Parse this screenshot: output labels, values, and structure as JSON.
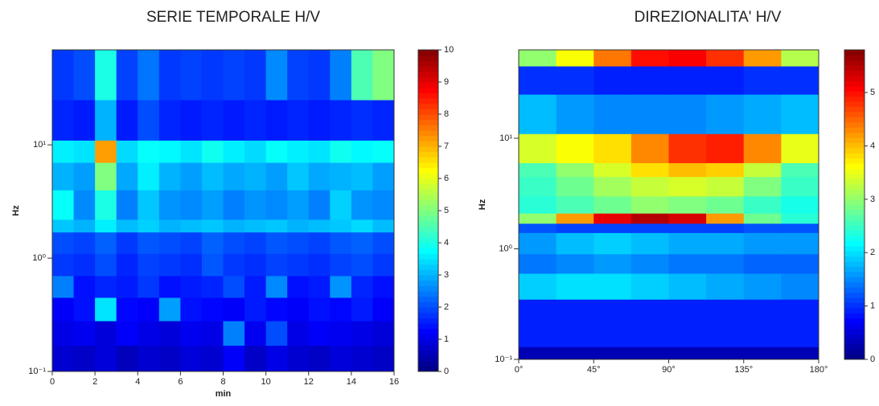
{
  "chart_data": [
    {
      "type": "heatmap",
      "title": "SERIE TEMPORALE H/V",
      "xlabel": "min",
      "ylabel": "Hz",
      "xbins": [
        0,
        1,
        2,
        3,
        4,
        5,
        6,
        7,
        8,
        9,
        10,
        11,
        12,
        13,
        14,
        15,
        16
      ],
      "ybins": [
        0.1,
        0.17,
        0.28,
        0.45,
        0.7,
        1.1,
        1.7,
        2.2,
        4,
        7,
        11,
        25,
        69
      ],
      "values": [
        [
          0.8,
          0.7,
          0.9,
          0.6,
          0.8,
          0.7,
          0.9,
          0.8,
          1.2,
          0.7,
          1.0,
          0.8,
          0.7,
          0.9,
          0.8,
          0.7
        ],
        [
          1.0,
          1.1,
          0.9,
          1.2,
          1.0,
          0.9,
          1.1,
          1.0,
          2.5,
          1.1,
          2.0,
          1.0,
          1.2,
          1.1,
          1.0,
          0.9
        ],
        [
          1.2,
          1.4,
          3.5,
          1.3,
          1.2,
          2.8,
          1.4,
          1.3,
          1.2,
          1.5,
          1.3,
          1.2,
          1.4,
          1.3,
          1.5,
          1.2
        ],
        [
          2.5,
          1.4,
          1.6,
          1.5,
          1.8,
          1.4,
          1.5,
          1.6,
          2.0,
          1.5,
          2.6,
          1.4,
          1.5,
          2.7,
          1.6,
          1.4
        ],
        [
          1.8,
          1.7,
          2.0,
          1.6,
          1.9,
          1.8,
          1.7,
          2.1,
          1.8,
          1.7,
          1.9,
          1.8,
          1.7,
          1.9,
          2.0,
          1.8
        ],
        [
          2.0,
          1.9,
          2.2,
          1.8,
          2.1,
          2.0,
          1.9,
          2.2,
          2.0,
          1.9,
          2.1,
          2.0,
          1.9,
          2.1,
          2.2,
          2.0
        ],
        [
          3.2,
          3.0,
          3.6,
          3.1,
          3.3,
          3.0,
          3.1,
          3.2,
          3.0,
          3.1,
          3.2,
          3.0,
          3.1,
          3.2,
          3.4,
          3.1
        ],
        [
          3.8,
          2.6,
          4.0,
          2.5,
          3.2,
          2.7,
          2.6,
          2.8,
          2.5,
          2.7,
          2.6,
          2.8,
          2.5,
          3.3,
          2.7,
          2.6
        ],
        [
          3.0,
          2.8,
          5.0,
          2.9,
          3.6,
          3.0,
          2.8,
          3.1,
          2.9,
          3.0,
          2.8,
          3.2,
          2.9,
          3.0,
          3.1,
          2.8
        ],
        [
          3.6,
          3.5,
          7.2,
          3.4,
          3.8,
          3.7,
          3.5,
          3.9,
          3.6,
          3.4,
          3.8,
          3.6,
          3.5,
          3.9,
          3.7,
          3.8
        ],
        [
          1.6,
          1.5,
          3.0,
          1.5,
          2.0,
          1.6,
          1.5,
          1.6,
          1.5,
          1.6,
          1.5,
          1.6,
          1.5,
          1.6,
          1.7,
          1.6
        ],
        [
          1.8,
          2.0,
          4.0,
          1.9,
          2.4,
          1.8,
          1.9,
          1.8,
          1.9,
          1.8,
          2.6,
          1.9,
          1.8,
          2.5,
          4.5,
          5.0
        ]
      ],
      "xlim": [
        0,
        16
      ],
      "xticks": [
        0,
        2,
        4,
        6,
        8,
        10,
        12,
        14,
        16
      ],
      "ylim": [
        0.1,
        69
      ],
      "log_y": true,
      "yticks": [
        {
          "value": 0.1,
          "label": "10⁻¹"
        },
        {
          "value": 1,
          "label": "10⁰"
        },
        {
          "value": 10,
          "label": "10¹"
        }
      ],
      "zlim": [
        0,
        10
      ],
      "zticks": [
        0,
        1,
        2,
        3,
        4,
        5,
        6,
        7,
        8,
        9,
        10
      ],
      "colormap": "jet"
    },
    {
      "type": "heatmap",
      "title": "DIREZIONALITA' H/V",
      "ylabel": "Hz",
      "xbins": [
        0,
        22.5,
        45,
        67.5,
        90,
        112.5,
        135,
        157.5,
        180
      ],
      "ybins": [
        0.1,
        0.13,
        0.35,
        0.6,
        0.9,
        1.4,
        1.7,
        2.1,
        3,
        4.5,
        6,
        11,
        25,
        45,
        63
      ],
      "values": [
        [
          0.3,
          0.3,
          0.3,
          0.3,
          0.3,
          0.3,
          0.3,
          0.3
        ],
        [
          0.9,
          0.9,
          0.9,
          0.9,
          0.9,
          0.9,
          0.9,
          0.9
        ],
        [
          1.9,
          2.0,
          2.0,
          1.9,
          1.8,
          1.7,
          1.6,
          1.5
        ],
        [
          1.4,
          1.5,
          1.6,
          1.5,
          1.4,
          1.4,
          1.3,
          1.3
        ],
        [
          1.6,
          1.8,
          1.9,
          1.8,
          1.7,
          1.7,
          1.6,
          1.6
        ],
        [
          1.2,
          1.1,
          1.1,
          1.1,
          1.1,
          1.1,
          1.2,
          1.2
        ],
        [
          3.0,
          4.2,
          5.2,
          5.5,
          5.3,
          4.2,
          2.8,
          2.4
        ],
        [
          2.4,
          2.6,
          2.8,
          3.0,
          2.9,
          2.8,
          2.5,
          2.3
        ],
        [
          2.5,
          2.8,
          3.1,
          3.3,
          3.4,
          3.3,
          2.9,
          2.5
        ],
        [
          2.6,
          3.0,
          3.4,
          3.8,
          4.0,
          3.9,
          3.3,
          2.6
        ],
        [
          3.4,
          3.6,
          3.8,
          4.3,
          4.8,
          4.9,
          4.3,
          3.5
        ],
        [
          1.8,
          1.6,
          1.5,
          1.5,
          1.5,
          1.6,
          1.7,
          1.8
        ],
        [
          1.0,
          1.0,
          0.9,
          0.9,
          0.9,
          0.9,
          1.0,
          1.0
        ],
        [
          3.0,
          3.6,
          4.4,
          5.0,
          5.1,
          4.8,
          4.2,
          3.2
        ]
      ],
      "xlim": [
        0,
        180
      ],
      "xticks": [
        {
          "value": 0,
          "label": "0°"
        },
        {
          "value": 45,
          "label": "45°"
        },
        {
          "value": 90,
          "label": "90°"
        },
        {
          "value": 135,
          "label": "135°"
        },
        {
          "value": 180,
          "label": "180°"
        }
      ],
      "ylim": [
        0.1,
        63
      ],
      "log_y": true,
      "yticks": [
        {
          "value": 0.1,
          "label": "10⁻¹"
        },
        {
          "value": 1,
          "label": "10⁰"
        },
        {
          "value": 10,
          "label": "10¹"
        }
      ],
      "zlim": [
        0,
        5.8
      ],
      "zticks": [
        0,
        1,
        2,
        3,
        4,
        5
      ],
      "colormap": "jet"
    }
  ]
}
